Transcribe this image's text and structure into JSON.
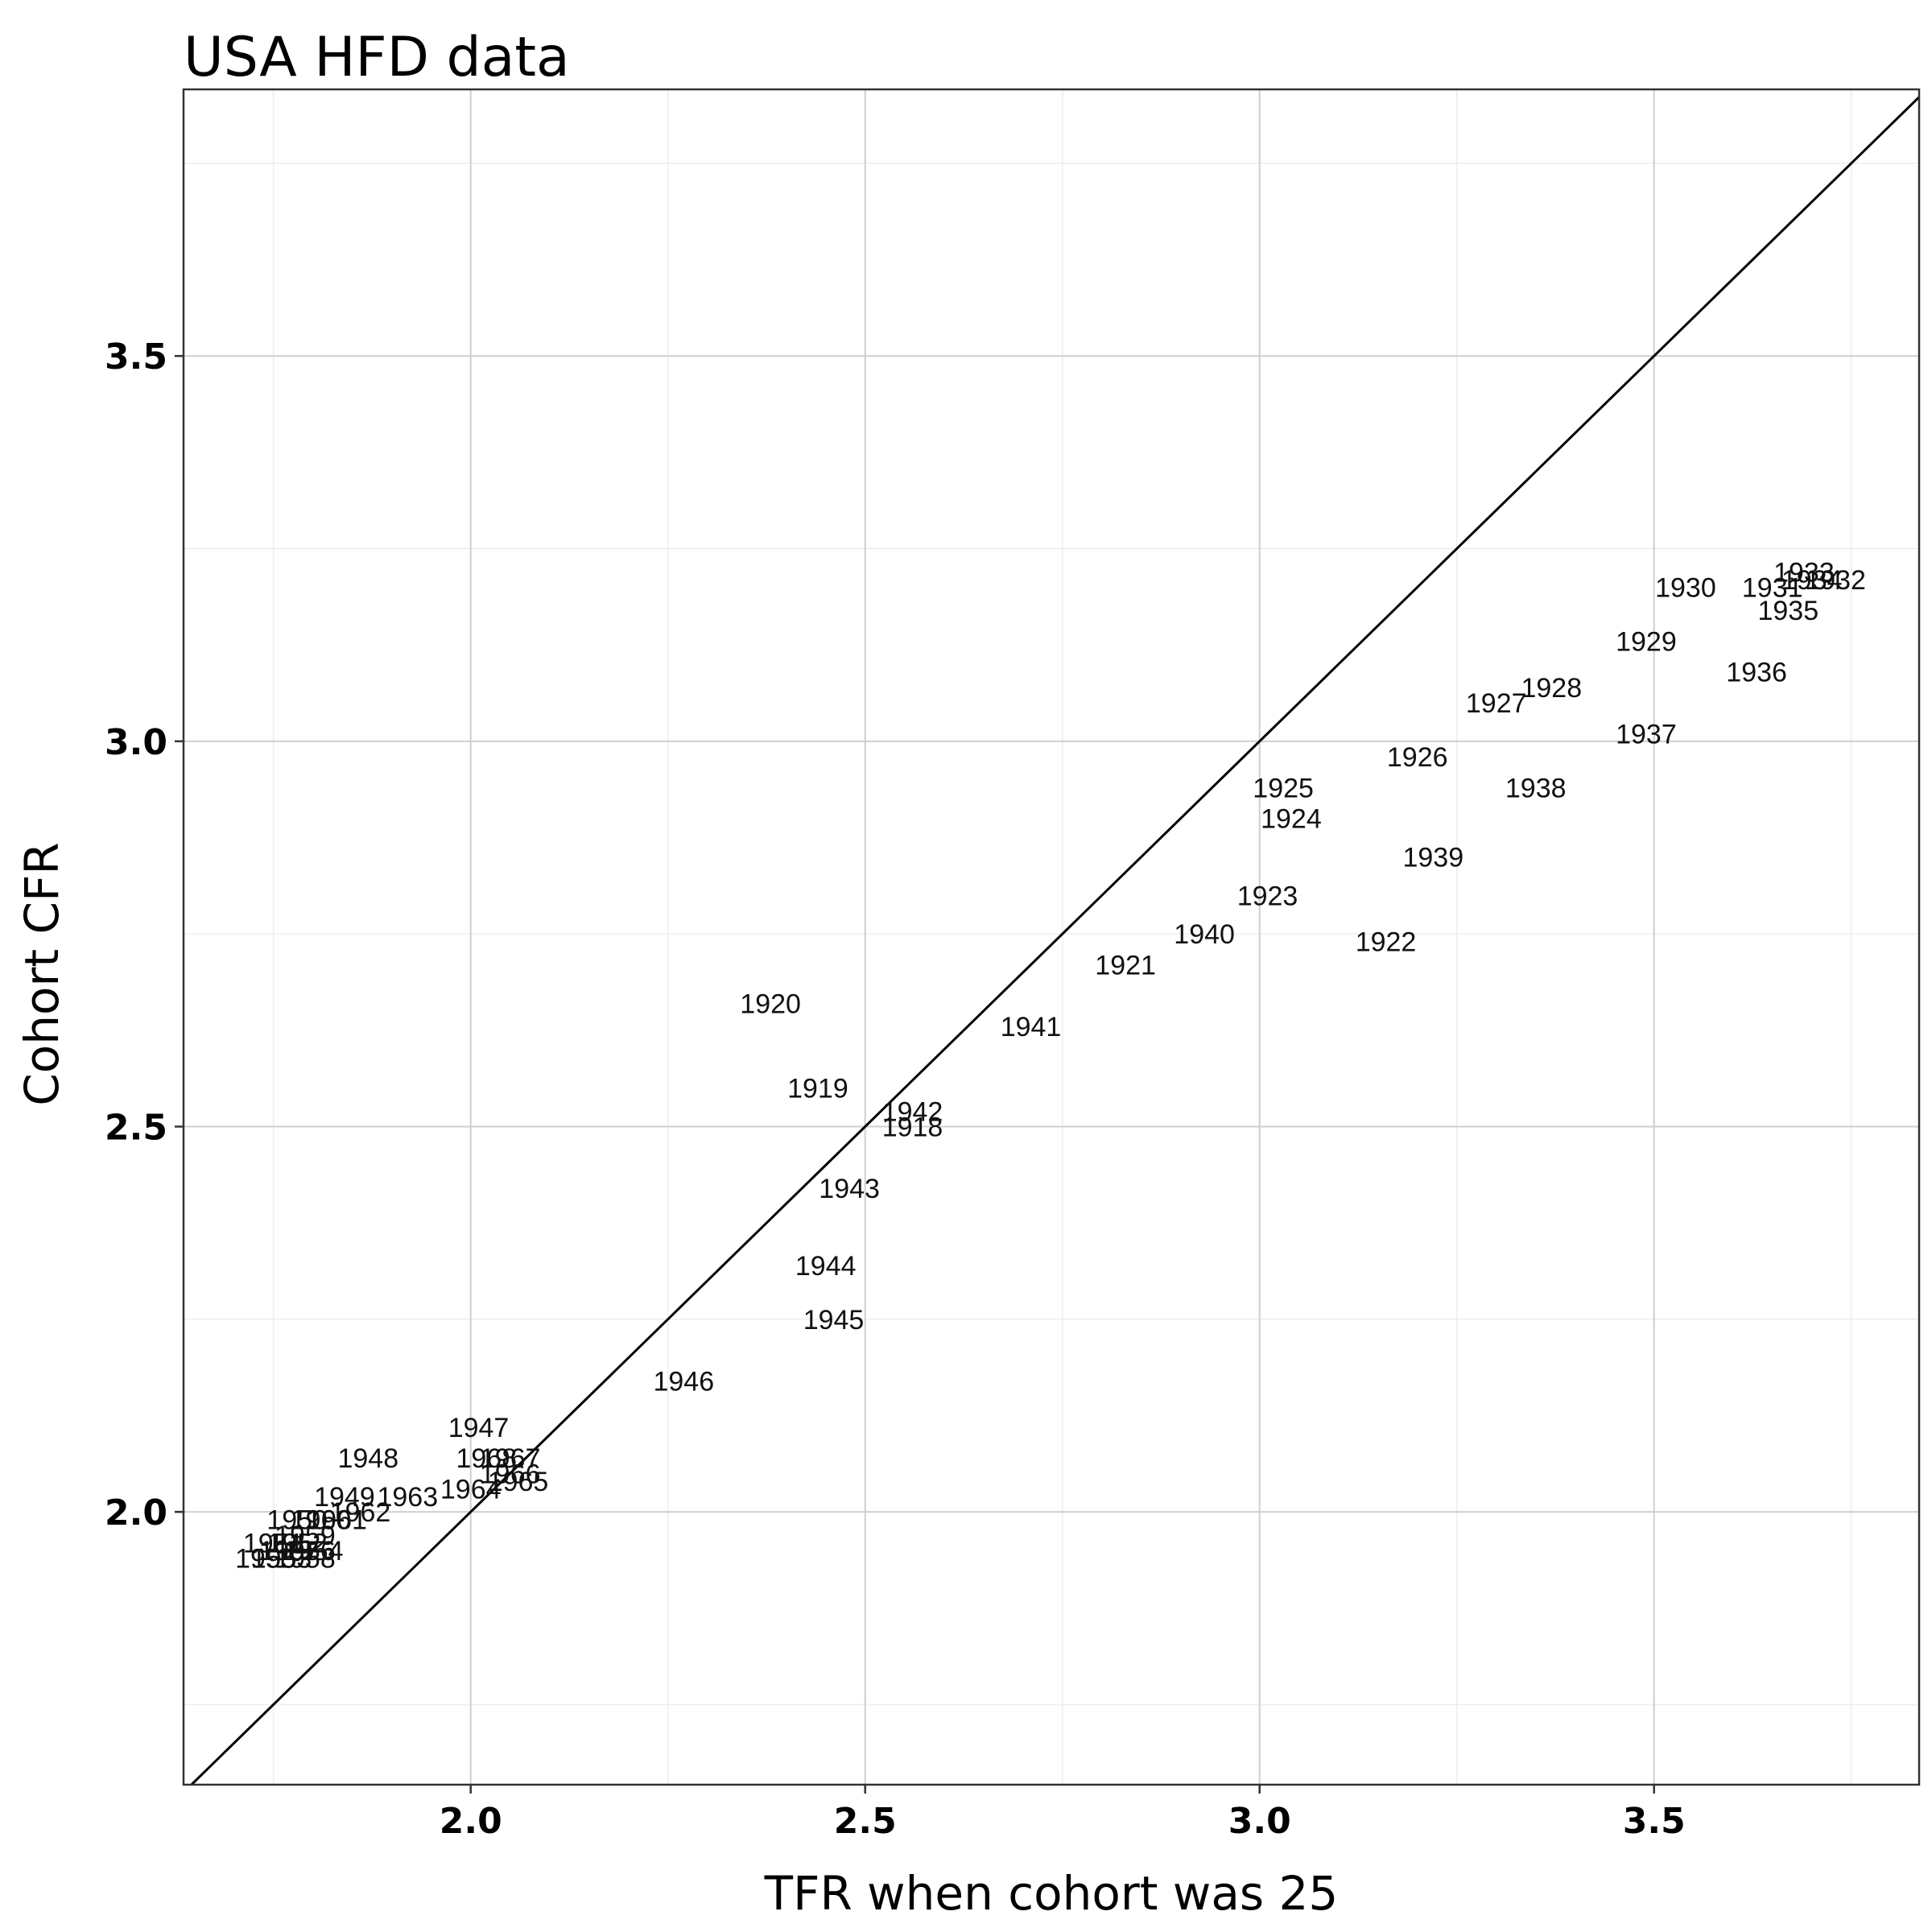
{
  "chart_data": {
    "type": "scatter",
    "title": "USA HFD data",
    "xlabel": "TFR when cohort was 25",
    "ylabel": "Cohort CFR",
    "xlim": [
      1.636,
      3.836
    ],
    "ylim": [
      1.646,
      3.846
    ],
    "x_ticks": [
      2.0,
      2.5,
      3.0,
      3.5
    ],
    "y_ticks": [
      2.0,
      2.5,
      3.0,
      3.5
    ],
    "x_tick_labels": [
      "2.0",
      "2.5",
      "3.0",
      "3.5"
    ],
    "y_tick_labels": [
      "2.0",
      "2.5",
      "3.0",
      "3.5"
    ],
    "grid": true,
    "reference_line": "y = x",
    "points": [
      {
        "label": "1918",
        "x": 2.56,
        "y": 2.5
      },
      {
        "label": "1919",
        "x": 2.44,
        "y": 2.55
      },
      {
        "label": "1920",
        "x": 2.38,
        "y": 2.66
      },
      {
        "label": "1921",
        "x": 2.83,
        "y": 2.71
      },
      {
        "label": "1922",
        "x": 3.16,
        "y": 2.74
      },
      {
        "label": "1923",
        "x": 3.01,
        "y": 2.8
      },
      {
        "label": "1924",
        "x": 3.04,
        "y": 2.9
      },
      {
        "label": "1925",
        "x": 3.03,
        "y": 2.94
      },
      {
        "label": "1926",
        "x": 3.2,
        "y": 2.98
      },
      {
        "label": "1927",
        "x": 3.3,
        "y": 3.05
      },
      {
        "label": "1928",
        "x": 3.37,
        "y": 3.07
      },
      {
        "label": "1929",
        "x": 3.49,
        "y": 3.13
      },
      {
        "label": "1930",
        "x": 3.54,
        "y": 3.2
      },
      {
        "label": "1931",
        "x": 3.65,
        "y": 3.2
      },
      {
        "label": "1932",
        "x": 3.73,
        "y": 3.21
      },
      {
        "label": "1933",
        "x": 3.69,
        "y": 3.22
      },
      {
        "label": "1934",
        "x": 3.7,
        "y": 3.21
      },
      {
        "label": "1935",
        "x": 3.67,
        "y": 3.17
      },
      {
        "label": "1936",
        "x": 3.63,
        "y": 3.09
      },
      {
        "label": "1937",
        "x": 3.49,
        "y": 3.01
      },
      {
        "label": "1938",
        "x": 3.35,
        "y": 2.94
      },
      {
        "label": "1939",
        "x": 3.22,
        "y": 2.85
      },
      {
        "label": "1940",
        "x": 2.93,
        "y": 2.75
      },
      {
        "label": "1941",
        "x": 2.71,
        "y": 2.63
      },
      {
        "label": "1942",
        "x": 2.56,
        "y": 2.52
      },
      {
        "label": "1943",
        "x": 2.48,
        "y": 2.42
      },
      {
        "label": "1944",
        "x": 2.45,
        "y": 2.32
      },
      {
        "label": "1945",
        "x": 2.46,
        "y": 2.25
      },
      {
        "label": "1946",
        "x": 2.27,
        "y": 2.17
      },
      {
        "label": "1947",
        "x": 2.01,
        "y": 2.11
      },
      {
        "label": "1948",
        "x": 1.87,
        "y": 2.07
      },
      {
        "label": "1949",
        "x": 1.84,
        "y": 2.02
      },
      {
        "label": "1950",
        "x": 1.78,
        "y": 1.99
      },
      {
        "label": "1951",
        "x": 1.75,
        "y": 1.96
      },
      {
        "label": "1952",
        "x": 1.78,
        "y": 1.96
      },
      {
        "label": "1953",
        "x": 1.76,
        "y": 1.94
      },
      {
        "label": "1954",
        "x": 1.8,
        "y": 1.95
      },
      {
        "label": "1955",
        "x": 1.74,
        "y": 1.94
      },
      {
        "label": "1956",
        "x": 1.79,
        "y": 1.95
      },
      {
        "label": "1957",
        "x": 1.77,
        "y": 1.95
      },
      {
        "label": "1958",
        "x": 1.79,
        "y": 1.94
      },
      {
        "label": "1959",
        "x": 1.79,
        "y": 1.97
      },
      {
        "label": "1960",
        "x": 1.81,
        "y": 1.99
      },
      {
        "label": "1961",
        "x": 1.83,
        "y": 1.99
      },
      {
        "label": "1962",
        "x": 1.86,
        "y": 2.0
      },
      {
        "label": "1963",
        "x": 1.92,
        "y": 2.02
      },
      {
        "label": "1964",
        "x": 2.0,
        "y": 2.03
      },
      {
        "label": "1965",
        "x": 2.06,
        "y": 2.04
      },
      {
        "label": "1966",
        "x": 2.05,
        "y": 2.05
      },
      {
        "label": "1967",
        "x": 2.05,
        "y": 2.07
      },
      {
        "label": "1968",
        "x": 2.02,
        "y": 2.07
      }
    ]
  }
}
